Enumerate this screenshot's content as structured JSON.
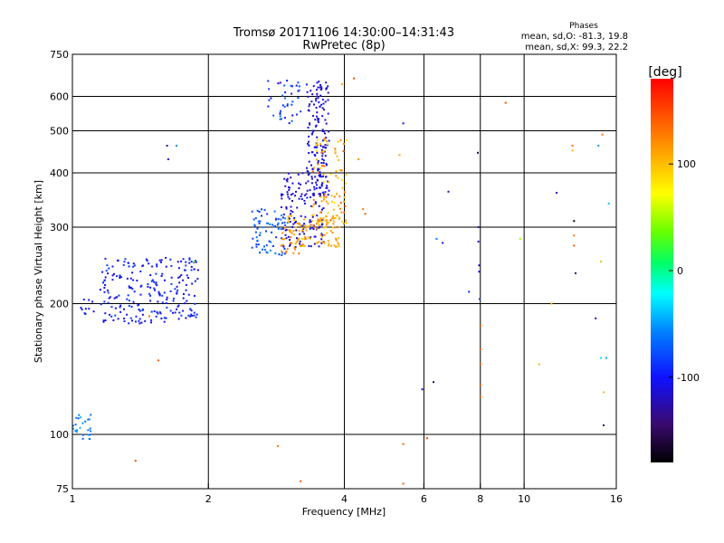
{
  "header": {
    "title_line1": "Tromsø 20171106 14:30:00–14:31:43",
    "title_line2": "RwPretec (8p)"
  },
  "stats": {
    "label": "Phases",
    "line_o": "mean, sd,O: -81.3, 19.8",
    "line_x": "mean, sd,X:  99.3, 22.2"
  },
  "colorbar": {
    "unit_label": "[deg]",
    "ticks": [
      {
        "value": 100,
        "label": "100"
      },
      {
        "value": 0,
        "label": "0"
      },
      {
        "value": -100,
        "label": "-100"
      }
    ],
    "range": [
      -180,
      180
    ]
  },
  "chart_data": {
    "type": "scatter",
    "xlabel": "Frequency [MHz]",
    "ylabel": "Stationary phase Virtual Height [km]",
    "x_scale": "log",
    "y_scale": "log",
    "xlim": [
      1,
      16
    ],
    "ylim": [
      75,
      750
    ],
    "x_ticks": [
      {
        "value": 1,
        "label": "1"
      },
      {
        "value": 2,
        "label": "2"
      },
      {
        "value": 4,
        "label": "4"
      },
      {
        "value": 6,
        "label": "6"
      },
      {
        "value": 8,
        "label": "8"
      },
      {
        "value": 10,
        "label": "10"
      },
      {
        "value": 16,
        "label": "16"
      }
    ],
    "y_ticks": [
      {
        "value": 75,
        "label": "75"
      },
      {
        "value": 100,
        "label": "100"
      },
      {
        "value": 200,
        "label": "200"
      },
      {
        "value": 300,
        "label": "300"
      },
      {
        "value": 400,
        "label": "400"
      },
      {
        "value": 500,
        "label": "500"
      },
      {
        "value": 600,
        "label": "600"
      },
      {
        "value": 750,
        "label": "750"
      }
    ],
    "grid_x": [
      2,
      4,
      6,
      8,
      10
    ],
    "grid_y": [
      100,
      200,
      300,
      400,
      500,
      600
    ],
    "grid": true,
    "point_groups": [
      {
        "f_range": [
          1.15,
          1.9
        ],
        "h_range": [
          180,
          255
        ],
        "phase_range": [
          -115,
          -80
        ],
        "count": 230
      },
      {
        "f_range": [
          1.0,
          1.12
        ],
        "h_range": [
          185,
          205
        ],
        "phase_range": [
          -105,
          -90
        ],
        "count": 10
      },
      {
        "f_range": [
          1.0,
          1.1
        ],
        "h_range": [
          97,
          112
        ],
        "phase_range": [
          -70,
          -40
        ],
        "count": 25
      },
      {
        "f_range": [
          2.5,
          3.0
        ],
        "h_range": [
          258,
          330
        ],
        "phase_range": [
          -90,
          -55
        ],
        "count": 70
      },
      {
        "f_range": [
          2.9,
          3.6
        ],
        "h_range": [
          270,
          400
        ],
        "phase_range": [
          -125,
          -100
        ],
        "count": 130
      },
      {
        "f_range": [
          3.3,
          3.7
        ],
        "h_range": [
          350,
          650
        ],
        "phase_range": [
          -125,
          -95
        ],
        "count": 160
      },
      {
        "f_range": [
          2.7,
          3.2
        ],
        "h_range": [
          520,
          660
        ],
        "phase_range": [
          -115,
          -60
        ],
        "count": 40
      },
      {
        "f_range": [
          3.0,
          3.9
        ],
        "h_range": [
          270,
          320
        ],
        "phase_range": [
          95,
          125
        ],
        "count": 90
      },
      {
        "f_range": [
          3.4,
          4.05
        ],
        "h_range": [
          300,
          480
        ],
        "phase_range": [
          80,
          140
        ],
        "count": 100
      },
      {
        "f_range": [
          2.9,
          3.3
        ],
        "h_range": [
          260,
          300
        ],
        "phase_range": [
          110,
          135
        ],
        "count": 20
      }
    ],
    "points": [
      {
        "f": 1.62,
        "h": 462,
        "phase": -110
      },
      {
        "f": 1.7,
        "h": 462,
        "phase": -55
      },
      {
        "f": 1.63,
        "h": 430,
        "phase": -115
      },
      {
        "f": 1.48,
        "h": 187,
        "phase": 130
      },
      {
        "f": 1.55,
        "h": 148,
        "phase": 140
      },
      {
        "f": 1.38,
        "h": 87,
        "phase": 150
      },
      {
        "f": 1.86,
        "h": 250,
        "phase": 40
      },
      {
        "f": 2.85,
        "h": 94,
        "phase": 130
      },
      {
        "f": 3.2,
        "h": 78,
        "phase": 140
      },
      {
        "f": 4.2,
        "h": 660,
        "phase": 150
      },
      {
        "f": 3.95,
        "h": 640,
        "phase": 110
      },
      {
        "f": 5.4,
        "h": 520,
        "phase": -100
      },
      {
        "f": 5.4,
        "h": 95,
        "phase": 140
      },
      {
        "f": 5.4,
        "h": 77,
        "phase": 140
      },
      {
        "f": 5.95,
        "h": 127,
        "phase": -120
      },
      {
        "f": 6.1,
        "h": 98,
        "phase": 150
      },
      {
        "f": 6.3,
        "h": 132,
        "phase": -150
      },
      {
        "f": 6.4,
        "h": 282,
        "phase": -60
      },
      {
        "f": 6.6,
        "h": 276,
        "phase": -100
      },
      {
        "f": 6.8,
        "h": 362,
        "phase": -130
      },
      {
        "f": 7.55,
        "h": 213,
        "phase": -90
      },
      {
        "f": 7.9,
        "h": 445,
        "phase": -160
      },
      {
        "f": 7.92,
        "h": 300,
        "phase": -140
      },
      {
        "f": 7.92,
        "h": 278,
        "phase": -115
      },
      {
        "f": 7.95,
        "h": 245,
        "phase": -120
      },
      {
        "f": 7.95,
        "h": 237,
        "phase": -100
      },
      {
        "f": 7.97,
        "h": 205,
        "phase": -80
      },
      {
        "f": 8.0,
        "h": 178,
        "phase": 140
      },
      {
        "f": 8.0,
        "h": 157,
        "phase": 140
      },
      {
        "f": 8.0,
        "h": 145,
        "phase": 140
      },
      {
        "f": 8.0,
        "h": 130,
        "phase": 140
      },
      {
        "f": 8.0,
        "h": 122,
        "phase": 140
      },
      {
        "f": 9.8,
        "h": 282,
        "phase": 50
      },
      {
        "f": 9.1,
        "h": 580,
        "phase": 150
      },
      {
        "f": 10.8,
        "h": 145,
        "phase": 100
      },
      {
        "f": 11.5,
        "h": 200,
        "phase": 110
      },
      {
        "f": 11.8,
        "h": 360,
        "phase": -120
      },
      {
        "f": 12.8,
        "h": 462,
        "phase": 130
      },
      {
        "f": 12.8,
        "h": 450,
        "phase": 100
      },
      {
        "f": 12.9,
        "h": 310,
        "phase": -170
      },
      {
        "f": 12.9,
        "h": 287,
        "phase": 130
      },
      {
        "f": 12.9,
        "h": 272,
        "phase": 145
      },
      {
        "f": 13.0,
        "h": 235,
        "phase": -130
      },
      {
        "f": 14.4,
        "h": 185,
        "phase": -110
      },
      {
        "f": 14.6,
        "h": 462,
        "phase": -50
      },
      {
        "f": 14.8,
        "h": 150,
        "phase": -30
      },
      {
        "f": 14.9,
        "h": 490,
        "phase": 130
      },
      {
        "f": 14.8,
        "h": 250,
        "phase": 100
      },
      {
        "f": 15.0,
        "h": 125,
        "phase": 100
      },
      {
        "f": 15.0,
        "h": 105,
        "phase": -140
      },
      {
        "f": 15.2,
        "h": 150,
        "phase": -50
      },
      {
        "f": 15.4,
        "h": 340,
        "phase": -40
      },
      {
        "f": 5.3,
        "h": 440,
        "phase": 110
      },
      {
        "f": 4.3,
        "h": 430,
        "phase": 120
      },
      {
        "f": 4.4,
        "h": 330,
        "phase": 130
      },
      {
        "f": 4.45,
        "h": 322,
        "phase": 140
      }
    ]
  }
}
